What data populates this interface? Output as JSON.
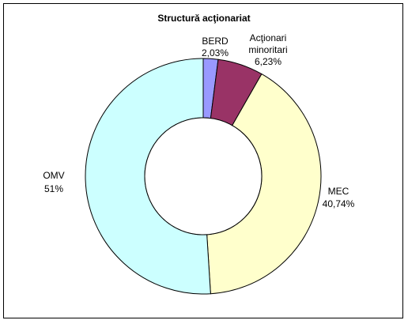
{
  "chart_data": {
    "type": "pie",
    "donut": true,
    "title": "Structură acţionariat",
    "slices": [
      {
        "name": "BERD",
        "value": 2.03,
        "label": "2,03%",
        "color": "#9999ff"
      },
      {
        "name": "Acţionari minoritari",
        "name_lines": [
          "Acţionari",
          "minoritari"
        ],
        "value": 6.23,
        "label": "6,23%",
        "color": "#993366"
      },
      {
        "name": "MEC",
        "value": 40.74,
        "label": "40,74%",
        "color": "#ffffcc"
      },
      {
        "name": "OMV",
        "value": 51,
        "label": "51%",
        "color": "#ccffff"
      }
    ],
    "legend": "none"
  }
}
